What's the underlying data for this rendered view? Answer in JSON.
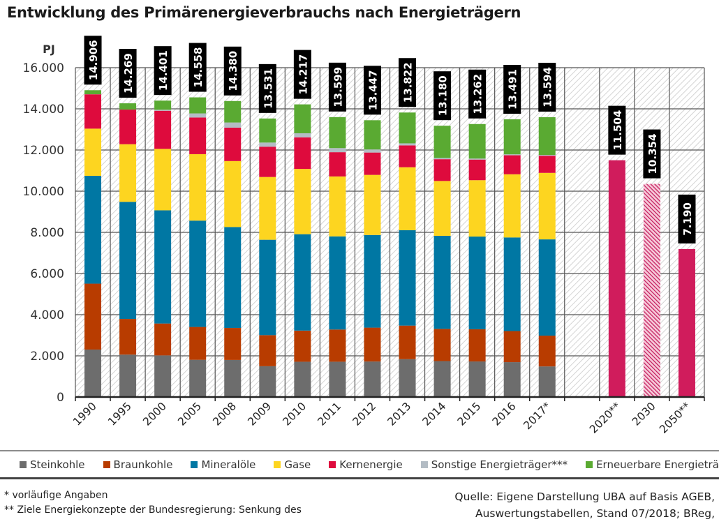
{
  "title": "Entwicklung des Primärenergieverbrauchs nach Energieträgern",
  "chart_data": {
    "type": "bar",
    "stacked": true,
    "title": "Entwicklung des Primärenergieverbrauchs nach Energieträgern",
    "ylabel": "PJ",
    "xlabel": "",
    "ylim": [
      0,
      16000
    ],
    "yticks": [
      0,
      2000,
      4000,
      6000,
      8000,
      10000,
      12000,
      14000,
      16000
    ],
    "ytick_labels": [
      "0",
      "2.000",
      "4.000",
      "6.000",
      "8.000",
      "10.000",
      "12.000",
      "14.000",
      "16.000"
    ],
    "grid": true,
    "categories": [
      "1990",
      "1995",
      "2000",
      "2005",
      "2008",
      "2009",
      "2010",
      "2011",
      "2012",
      "2013",
      "2014",
      "2015",
      "2016",
      "2017*",
      "",
      "2020**",
      "2030",
      "2050**"
    ],
    "series": [
      {
        "name": "Steinkohle",
        "color": "#6d6d6d",
        "values": [
          2306,
          2060,
          2021,
          1808,
          1800,
          1496,
          1714,
          1715,
          1725,
          1840,
          1746,
          1727,
          1693,
          1486,
          null,
          null,
          null,
          null
        ]
      },
      {
        "name": "Braunkohle",
        "color": "#b83c00",
        "values": [
          3201,
          1734,
          1550,
          1596,
          1554,
          1509,
          1512,
          1564,
          1645,
          1629,
          1564,
          1565,
          1511,
          1496,
          null,
          null,
          null,
          null
        ]
      },
      {
        "name": "Mineralöle",
        "color": "#0077a3",
        "values": [
          5238,
          5689,
          5499,
          5166,
          4904,
          4635,
          4684,
          4526,
          4502,
          4635,
          4521,
          4503,
          4548,
          4676,
          null,
          null,
          null,
          null
        ]
      },
      {
        "name": "Gase",
        "color": "#fdd520",
        "values": [
          2293,
          2799,
          2985,
          3229,
          3205,
          3050,
          3171,
          2911,
          2920,
          3059,
          2665,
          2739,
          3069,
          3231,
          null,
          null,
          null,
          null
        ]
      },
      {
        "name": "Kernenergie",
        "color": "#de0b3d",
        "values": [
          1668,
          1682,
          1851,
          1779,
          1623,
          1472,
          1533,
          1178,
          1085,
          1061,
          1058,
          1001,
          923,
          833,
          null,
          null,
          null,
          null
        ]
      },
      {
        "name": "Sonstige Energieträger***",
        "color": "#b3bcc4",
        "values": [
          4,
          0,
          50,
          200,
          250,
          200,
          200,
          200,
          150,
          100,
          60,
          50,
          47,
          40,
          null,
          null,
          null,
          null
        ]
      },
      {
        "name": "Erneuerbare Energieträger",
        "color": "#5aaa32",
        "values": [
          196,
          305,
          445,
          780,
          1044,
          1169,
          1403,
          1505,
          1420,
          1498,
          1566,
          1677,
          1700,
          1832,
          null,
          null,
          null,
          null
        ]
      }
    ],
    "targets": [
      {
        "category": "2020**",
        "value": 11504,
        "label": "11.504",
        "color": "#d01c5c",
        "pattern": "solid"
      },
      {
        "category": "2030",
        "value": 10354,
        "label": "10.354",
        "color": "#d01c5c",
        "pattern": "hatched"
      },
      {
        "category": "2050**",
        "value": 7190,
        "label": "7.190",
        "color": "#d01c5c",
        "pattern": "solid"
      }
    ],
    "total_labels": [
      "14.906",
      "14.269",
      "14.401",
      "14.558",
      "14.380",
      "13.531",
      "14.217",
      "13.599",
      "13.447",
      "13.822",
      "13.180",
      "13.262",
      "13.491",
      "13.594"
    ],
    "totals": [
      14906,
      14269,
      14401,
      14558,
      14380,
      13531,
      14217,
      13599,
      13447,
      13822,
      13180,
      13262,
      13491,
      13594
    ],
    "legend_position": "bottom"
  },
  "legend": [
    {
      "label": "Steinkohle",
      "color": "#6d6d6d"
    },
    {
      "label": "Braunkohle",
      "color": "#b83c00"
    },
    {
      "label": "Mineralöle",
      "color": "#0077a3"
    },
    {
      "label": "Gase",
      "color": "#fdd520"
    },
    {
      "label": "Kernenergie",
      "color": "#de0b3d"
    },
    {
      "label": "Sonstige Energieträger***",
      "color": "#b3bcc4"
    },
    {
      "label": "Erneuerbare Energieträger",
      "color": "#5aaa32"
    }
  ],
  "footnotes": {
    "line1": "* vorläufige Angaben",
    "line2": "** Ziele Energiekonzepte der Bundesregierung: Senkung des"
  },
  "source": {
    "line1": "Quelle: Eigene Darstellung UBA auf Basis AGEB,",
    "line2": "Auswertungstabellen, Stand 07/2018; BReg,"
  }
}
